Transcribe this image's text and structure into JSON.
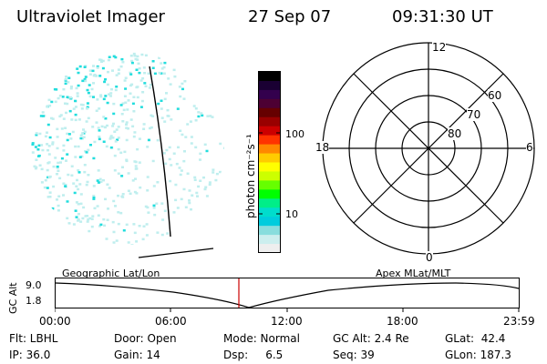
{
  "header": {
    "instrument": "Ultraviolet Imager",
    "date": "27 Sep 07",
    "time": "09:31:30 UT"
  },
  "colorbar": {
    "unit_label": "photon cm⁻²s⁻¹",
    "ticks": [
      "100",
      "10"
    ],
    "colors": [
      "#000000",
      "#1a0033",
      "#33004d",
      "#4d0033",
      "#660000",
      "#990000",
      "#cc0000",
      "#ff3300",
      "#ff8800",
      "#ffcc00",
      "#ffff00",
      "#ccff00",
      "#66ff00",
      "#00ff00",
      "#00ee88",
      "#00ddcc",
      "#00ccdd",
      "#88dddd",
      "#cceeee",
      "#eeeeee"
    ]
  },
  "polar": {
    "mlt_labels": {
      "top": "12",
      "left": "18",
      "right": "6",
      "bottom": "0"
    },
    "lat_labels": [
      "60",
      "70",
      "80"
    ]
  },
  "plot": {
    "left_title": "Geographic Lat/Lon",
    "right_title": "Apex MLat/MLT",
    "y_label": "GC Alt",
    "y_ticks": [
      "9.0",
      "1.8"
    ],
    "x_ticks": [
      "00:00",
      "06:00",
      "12:00",
      "18:00",
      "23:59"
    ],
    "marker_color": "#cc0000"
  },
  "footer": {
    "row1": {
      "flt": "Flt: LBHL",
      "door": "Door: Open",
      "mode": "Mode: Normal",
      "gcalt": "GC Alt: 2.4 Re",
      "glat": "GLat:  42.4"
    },
    "row2": {
      "ip": "IP: 36.0",
      "gain": "Gain: 14",
      "dsp": "Dsp:     6.5",
      "seq": "Seq: 39",
      "glon": "GLon: 187.3"
    }
  },
  "colors": {
    "aurora_primary": "#22dddd",
    "aurora_faint": "#bfeeee",
    "axis": "#000000"
  }
}
